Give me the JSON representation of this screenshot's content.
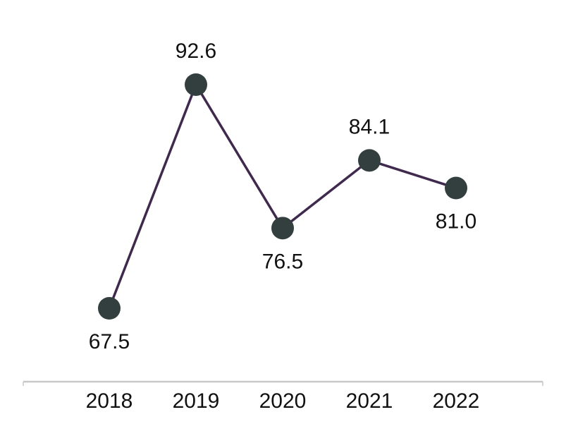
{
  "chart_data": {
    "type": "line",
    "categories": [
      "2018",
      "2019",
      "2020",
      "2021",
      "2022"
    ],
    "series": [
      {
        "values": [
          67.5,
          92.6,
          76.5,
          84.1,
          81.0
        ],
        "labels": [
          "67.5",
          "92.6",
          "76.5",
          "84.1",
          "81.0"
        ],
        "label_position": [
          "below",
          "above",
          "below",
          "above",
          "below"
        ]
      }
    ],
    "xlabel": "",
    "ylabel": "",
    "y_axis_visible": false,
    "grid": false,
    "legend": "none",
    "colors": {
      "line": "#3f2a4d",
      "marker": "#333f3e",
      "axis": "#c8c8c8",
      "text": "#111111"
    }
  }
}
